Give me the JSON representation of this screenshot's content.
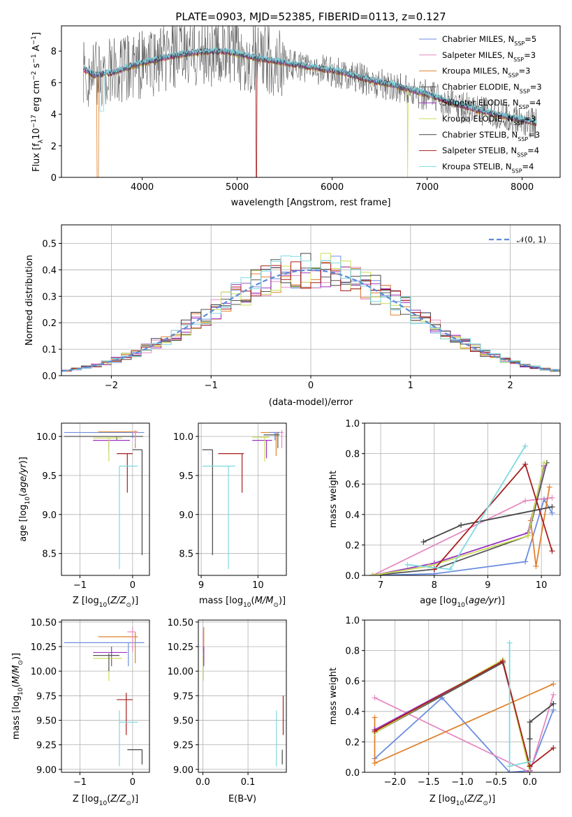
{
  "title": "PLATE=0903, MJD=52385, FIBERID=0113, z=0.127",
  "colors": {
    "chab_miles": "#6c8ee0",
    "salp_miles": "#e58ac0",
    "kroupa_miles": "#e0822d",
    "chab_elodie": "#555555",
    "salp_elodie": "#9b33c0",
    "kroupa_elodie": "#c9dd55",
    "chab_stelib": "#444444",
    "salp_stelib": "#a81d1d",
    "kroupa_stelib": "#7fd9df",
    "gauss": "#5b8bd6"
  },
  "chart_data": [
    {
      "id": "spectrum",
      "type": "line",
      "xlabel": "wavelength [Angstrom, rest frame]",
      "ylabel_main": "Flux [f",
      "ylabel_sub": "λ",
      "ylabel_rest": "10",
      "ylabel_exp": "−17",
      "ylabel_units": " erg cm",
      "ylabel_exp2": "−2",
      "ylabel_s": " s",
      "ylabel_exp3": "−1",
      "ylabel_A": " A",
      "ylabel_exp4": "−1",
      "ylabel_end": "]",
      "xlim": [
        3150,
        8400
      ],
      "ylim": [
        0,
        9.6
      ],
      "xticks": [
        "4000",
        "5000",
        "6000",
        "7000",
        "8000"
      ],
      "xtick_values": [
        4000,
        5000,
        6000,
        7000,
        8000
      ],
      "yticks": [
        "0",
        "2",
        "4",
        "6",
        "8"
      ],
      "ytick_values": [
        0,
        2,
        4,
        6,
        8
      ],
      "continuum": {
        "x": [
          3380,
          3500,
          3700,
          4000,
          4300,
          4600,
          4900,
          5200,
          5500,
          5800,
          6100,
          6400,
          6700,
          7000,
          7300,
          7600,
          7900,
          8150
        ],
        "y": [
          6.8,
          6.4,
          6.6,
          7.2,
          7.6,
          7.9,
          7.9,
          7.5,
          7.2,
          6.9,
          6.6,
          6.1,
          5.7,
          5.2,
          4.6,
          4.1,
          3.7,
          3.4
        ]
      },
      "legend": [
        {
          "label": "Chabrier MILES, N",
          "sub": "SSP",
          "val": "=5"
        },
        {
          "label": "Salpeter MILES, N",
          "sub": "SSP",
          "val": "=3"
        },
        {
          "label": "Kroupa MILES, N",
          "sub": "SSP",
          "val": "=3"
        },
        {
          "label": "Chabrier ELODIE, N",
          "sub": "SSP",
          "val": "=3"
        },
        {
          "label": "Salpeter ELODIE, N",
          "sub": "SSP",
          "val": "=4"
        },
        {
          "label": "Kroupa ELODIE, N",
          "sub": "SSP",
          "val": "=3"
        },
        {
          "label": "Chabrier STELIB, N",
          "sub": "SSP",
          "val": "=3"
        },
        {
          "label": "Salpeter STELIB, N",
          "sub": "SSP",
          "val": "=4"
        },
        {
          "label": "Kroupa STELIB, N",
          "sub": "SSP",
          "val": "=4"
        }
      ]
    },
    {
      "id": "residuals",
      "type": "histogram",
      "xlabel": "(data-model)/error",
      "ylabel": "Normed distribution",
      "xlim": [
        -2.5,
        2.5
      ],
      "ylim": [
        0,
        0.57
      ],
      "xticks": [
        "−2",
        "−1",
        "0",
        "1",
        "2"
      ],
      "xtick_values": [
        -2,
        -1,
        0,
        1,
        2
      ],
      "yticks": [
        "0.0",
        "0.1",
        "0.2",
        "0.3",
        "0.4",
        "0.5"
      ],
      "ytick_values": [
        0,
        0.1,
        0.2,
        0.3,
        0.4,
        0.5
      ],
      "gauss_label": "𝒩(0, 1)",
      "bin_width": 0.1,
      "bins_start": -2.5
    },
    {
      "id": "age_vs_Z",
      "type": "errorbar",
      "xlabel": "Z [log",
      "xlabel_sub": "10",
      "xlabel_rest": "(Z/Z",
      "xlabel_sun": "⊙",
      "xlabel_end": ")]",
      "ylabel": "age  [log",
      "ylabel_sub": "10",
      "ylabel_rest": "(age/yr)]",
      "xlim": [
        -1.35,
        0.32
      ],
      "ylim": [
        8.22,
        10.17
      ],
      "xticks": [
        "−1",
        "0"
      ],
      "xtick_values": [
        -1,
        0
      ],
      "yticks": [
        "8.5",
        "9.0",
        "9.5",
        "10.0"
      ],
      "ytick_values": [
        8.5,
        9.0,
        9.5,
        10.0
      ],
      "points": [
        {
          "c": "chab_miles",
          "x": -1.3,
          "y": 10.05,
          "x2": 0.22,
          "y2": 10.05,
          "vx": 0.0,
          "vy1": 10.05,
          "vy2": 9.98
        },
        {
          "c": "chab_elodie",
          "x": -1.3,
          "y": 10.0,
          "x2": 0.2,
          "y2": 10.0,
          "vx": -0.3,
          "vy1": 10.0,
          "vy2": 9.95
        },
        {
          "c": "kroupa_miles",
          "x": -0.65,
          "y": 10.06,
          "x2": 0.1,
          "y2": 10.06,
          "vx": 0.05,
          "vy1": 10.06,
          "vy2": 9.85
        },
        {
          "c": "salp_miles",
          "x": 0.0,
          "y": 10.05,
          "x2": 0.1,
          "y2": 10.05,
          "vx": 0.05,
          "vy1": 10.08,
          "vy2": 9.9
        },
        {
          "c": "salp_elodie",
          "x": -0.75,
          "y": 9.95,
          "x2": -0.05,
          "y2": 9.95,
          "vx": -0.45,
          "vy1": 9.95,
          "vy2": 9.8
        },
        {
          "c": "kroupa_elodie",
          "x": -0.75,
          "y": 9.98,
          "x2": -0.2,
          "y2": 9.98,
          "vx": -0.45,
          "vy1": 9.98,
          "vy2": 9.68
        },
        {
          "c": "salp_stelib",
          "x": -0.3,
          "y": 9.78,
          "x2": 0.0,
          "y2": 9.78,
          "vx": -0.1,
          "vy1": 9.78,
          "vy2": 9.28
        },
        {
          "c": "kroupa_stelib",
          "x": -0.25,
          "y": 9.62,
          "x2": 0.1,
          "y2": 9.62,
          "vx": -0.25,
          "vy1": 9.62,
          "vy2": 8.3
        },
        {
          "c": "chab_stelib",
          "x": 0.0,
          "y": 9.83,
          "x2": 0.18,
          "y2": 9.83,
          "vx": 0.18,
          "vy1": 9.83,
          "vy2": 8.48
        }
      ]
    },
    {
      "id": "age_vs_mass",
      "type": "errorbar",
      "xlabel": "mass [log",
      "xlabel_sub": "10",
      "xlabel_rest": "(M/M",
      "xlabel_sun": "⊙",
      "xlabel_end": ")]",
      "xlim": [
        8.95,
        10.5
      ],
      "ylim": [
        8.22,
        10.17
      ],
      "xticks": [
        "9",
        "10"
      ],
      "xtick_values": [
        9,
        10
      ],
      "yticks": [
        "8.5",
        "9.0",
        "9.5",
        "10.0"
      ],
      "ytick_values": [
        8.5,
        9.0,
        9.5,
        10.0
      ],
      "points": [
        {
          "c": "chab_stelib",
          "x": 9.02,
          "y": 9.83,
          "x2": 9.2,
          "y2": 9.83,
          "vx": 9.2,
          "vy1": 9.83,
          "vy2": 8.48
        },
        {
          "c": "kroupa_stelib",
          "x": 9.02,
          "y": 9.62,
          "x2": 9.6,
          "y2": 9.62,
          "vx": 9.48,
          "vy1": 9.62,
          "vy2": 8.3
        },
        {
          "c": "salp_stelib",
          "x": 9.3,
          "y": 9.78,
          "x2": 9.75,
          "y2": 9.78,
          "vx": 9.72,
          "vy1": 9.78,
          "vy2": 9.28
        },
        {
          "c": "salp_elodie",
          "x": 9.9,
          "y": 9.95,
          "x2": 10.25,
          "y2": 9.95,
          "vx": 10.15,
          "vy1": 9.95,
          "vy2": 9.72
        },
        {
          "c": "kroupa_elodie",
          "x": 9.9,
          "y": 9.99,
          "x2": 10.2,
          "y2": 9.99,
          "vx": 10.12,
          "vy1": 9.99,
          "vy2": 9.68
        },
        {
          "c": "kroupa_miles",
          "x": 10.05,
          "y": 10.05,
          "x2": 10.38,
          "y2": 10.05,
          "vx": 10.32,
          "vy1": 10.05,
          "vy2": 9.75
        },
        {
          "c": "salp_miles",
          "x": 10.25,
          "y": 10.05,
          "x2": 10.45,
          "y2": 10.05,
          "vx": 10.42,
          "vy1": 10.08,
          "vy2": 9.85
        },
        {
          "c": "chab_miles",
          "x": 10.2,
          "y": 10.05,
          "x2": 10.38,
          "y2": 10.05,
          "vx": 10.3,
          "vy1": 10.05,
          "vy2": 9.95
        },
        {
          "c": "chab_elodie",
          "x": 10.1,
          "y": 10.02,
          "x2": 10.38,
          "y2": 10.02,
          "vx": 10.35,
          "vy1": 10.05,
          "vy2": 9.85
        }
      ]
    },
    {
      "id": "weight_vs_age",
      "type": "line",
      "xlabel": "age  [log",
      "xlabel_sub": "10",
      "xlabel_rest": "(age/yr)]",
      "ylabel": "mass weight",
      "xlim": [
        6.7,
        10.35
      ],
      "ylim": [
        0,
        1.0
      ],
      "xticks": [
        "7",
        "8",
        "9",
        "10"
      ],
      "xtick_values": [
        7,
        8,
        9,
        10
      ],
      "yticks": [
        "0.0",
        "0.2",
        "0.4",
        "0.6",
        "0.8",
        "1.0"
      ],
      "ytick_values": [
        0,
        0.2,
        0.4,
        0.6,
        0.8,
        1.0
      ],
      "series": [
        {
          "c": "chab_miles",
          "x": [
            6.85,
            8.0,
            9.7,
            10.05,
            10.2
          ],
          "y": [
            0.0,
            0.01,
            0.09,
            0.5,
            0.41
          ]
        },
        {
          "c": "salp_miles",
          "x": [
            6.85,
            9.7,
            10.2
          ],
          "y": [
            0.0,
            0.49,
            0.51
          ]
        },
        {
          "c": "kroupa_miles",
          "x": [
            9.8,
            9.9,
            10.15
          ],
          "y": [
            0.36,
            0.06,
            0.58
          ]
        },
        {
          "c": "chab_elodie",
          "x": [
            6.85,
            8.0,
            9.75,
            10.1
          ],
          "y": [
            0.0,
            0.04,
            0.26,
            0.74
          ]
        },
        {
          "c": "salp_elodie",
          "x": [
            6.85,
            8.0,
            9.75,
            10.05
          ],
          "y": [
            0.0,
            0.08,
            0.28,
            0.72
          ]
        },
        {
          "c": "kroupa_elodie",
          "x": [
            6.85,
            7.9,
            9.75,
            10.05
          ],
          "y": [
            0.0,
            0.06,
            0.26,
            0.74
          ]
        },
        {
          "c": "chab_stelib",
          "x": [
            7.8,
            8.5,
            10.2
          ],
          "y": [
            0.22,
            0.33,
            0.45
          ]
        },
        {
          "c": "salp_stelib",
          "x": [
            8.0,
            9.7,
            10.2
          ],
          "y": [
            0.04,
            0.73,
            0.16
          ]
        },
        {
          "c": "kroupa_stelib",
          "x": [
            7.5,
            8.3,
            9.7
          ],
          "y": [
            0.07,
            0.04,
            0.85
          ]
        }
      ]
    },
    {
      "id": "mass_vs_Z",
      "type": "errorbar",
      "xlabel": "Z [log",
      "xlabel_sub": "10",
      "xlabel_rest": "(Z/Z",
      "xlabel_sun": "⊙",
      "xlabel_end": ")]",
      "ylabel": "mass [log",
      "ylabel_sub": "10",
      "ylabel_rest": "(M/M",
      "ylabel_sun": "⊙",
      "ylabel_end": ")]",
      "xlim": [
        -1.35,
        0.32
      ],
      "ylim": [
        8.97,
        10.52
      ],
      "xticks": [
        "−1",
        "0"
      ],
      "xtick_values": [
        -1,
        0
      ],
      "yticks": [
        "9.00",
        "9.25",
        "9.50",
        "9.75",
        "10.00",
        "10.25",
        "10.50"
      ],
      "ytick_values": [
        9.0,
        9.25,
        9.5,
        9.75,
        10.0,
        10.25,
        10.5
      ],
      "points": [
        {
          "c": "chab_miles",
          "x": -1.3,
          "y": 10.29,
          "x2": 0.22,
          "y2": 10.29,
          "vx": -0.08,
          "vy1": 10.29,
          "vy2": 10.05
        },
        {
          "c": "kroupa_miles",
          "x": -0.65,
          "y": 10.35,
          "x2": 0.1,
          "y2": 10.35,
          "vx": 0.05,
          "vy1": 10.4,
          "vy2": 10.08
        },
        {
          "c": "salp_miles",
          "x": -0.1,
          "y": 10.4,
          "x2": 0.05,
          "y2": 10.4,
          "vx": 0.0,
          "vy1": 10.45,
          "vy2": 10.2
        },
        {
          "c": "salp_elodie",
          "x": -0.75,
          "y": 10.19,
          "x2": -0.1,
          "y2": 10.19,
          "vx": -0.4,
          "vy1": 10.25,
          "vy2": 10.05
        },
        {
          "c": "kroupa_elodie",
          "x": -0.75,
          "y": 10.13,
          "x2": -0.2,
          "y2": 10.13,
          "vx": -0.45,
          "vy1": 10.15,
          "vy2": 9.9
        },
        {
          "c": "chab_elodie",
          "x": -0.75,
          "y": 10.16,
          "x2": -0.25,
          "y2": 10.16,
          "vx": -0.45,
          "vy1": 10.18,
          "vy2": 10.0
        },
        {
          "c": "salp_stelib",
          "x": -0.3,
          "y": 9.71,
          "x2": 0.0,
          "y2": 9.71,
          "vx": -0.12,
          "vy1": 9.78,
          "vy2": 9.35
        },
        {
          "c": "kroupa_stelib",
          "x": -0.25,
          "y": 9.48,
          "x2": 0.1,
          "y2": 9.48,
          "vx": -0.25,
          "vy1": 9.6,
          "vy2": 9.03
        },
        {
          "c": "chab_stelib",
          "x": -0.1,
          "y": 9.2,
          "x2": 0.18,
          "y2": 9.2,
          "vx": 0.18,
          "vy1": 9.2,
          "vy2": 9.05
        }
      ]
    },
    {
      "id": "mass_vs_ebv",
      "type": "errorbar",
      "xlabel": "E(B-V)",
      "xlim": [
        -0.01,
        0.185
      ],
      "ylim": [
        8.97,
        10.52
      ],
      "xticks": [
        "0.0",
        "0.1"
      ],
      "xtick_values": [
        0,
        0.1
      ],
      "yticks": [
        "9.00",
        "9.25",
        "9.50",
        "9.75",
        "10.00",
        "10.25",
        "10.50"
      ],
      "ytick_values": [
        9.0,
        9.25,
        9.5,
        9.75,
        10.0,
        10.25,
        10.5
      ],
      "points": [
        {
          "c": "kroupa_miles",
          "vx": 0.002,
          "vy1": 10.45,
          "vy2": 10.1
        },
        {
          "c": "salp_miles",
          "vx": 0.001,
          "vy1": 10.42,
          "vy2": 10.2
        },
        {
          "c": "kroupa_elodie",
          "vx": 0.001,
          "vy1": 10.15,
          "vy2": 9.9
        },
        {
          "c": "salp_elodie",
          "vx": 0.002,
          "vy1": 10.25,
          "vy2": 10.05
        },
        {
          "c": "kroupa_stelib",
          "vx": 0.163,
          "vy1": 9.6,
          "vy2": 9.03
        },
        {
          "c": "salp_stelib",
          "vx": 0.178,
          "vy1": 9.75,
          "vy2": 9.35
        },
        {
          "c": "chab_stelib",
          "vx": 0.176,
          "vy1": 9.2,
          "vy2": 9.05
        }
      ]
    },
    {
      "id": "weight_vs_Z",
      "type": "line",
      "xlabel": "Z [log",
      "xlabel_sub": "10",
      "xlabel_rest": "(Z/Z",
      "xlabel_sun": "⊙",
      "xlabel_end": ")]",
      "ylabel": "mass weight",
      "xlim": [
        -2.45,
        0.45
      ],
      "ylim": [
        0,
        1.0
      ],
      "xticks": [
        "−2.0",
        "−1.5",
        "−1.0",
        "−0.5",
        "0.0"
      ],
      "xtick_values": [
        -2.0,
        -1.5,
        -1.0,
        -0.5,
        0.0
      ],
      "yticks": [
        "0.0",
        "0.2",
        "0.4",
        "0.6",
        "0.8",
        "1.0"
      ],
      "ytick_values": [
        0,
        0.2,
        0.4,
        0.6,
        0.8,
        1.0
      ],
      "series": [
        {
          "c": "chab_miles",
          "x": [
            -2.3,
            -1.3,
            -0.3,
            0.0,
            0.35
          ],
          "y": [
            0.09,
            0.49,
            0.0,
            0.01,
            0.41
          ]
        },
        {
          "c": "salp_miles",
          "x": [
            -2.3,
            0.0,
            0.35
          ],
          "y": [
            0.49,
            0.0,
            0.51
          ]
        },
        {
          "c": "kroupa_miles",
          "x": [
            -2.3,
            -2.3,
            0.35
          ],
          "y": [
            0.36,
            0.06,
            0.58
          ]
        },
        {
          "c": "chab_elodie",
          "x": [
            -2.3,
            -0.4,
            0.0,
            0.0
          ],
          "y": [
            0.26,
            0.72,
            0.04,
            0.22
          ]
        },
        {
          "c": "salp_elodie",
          "x": [
            -2.3,
            -0.4,
            0.0
          ],
          "y": [
            0.28,
            0.73,
            0.01
          ]
        },
        {
          "c": "kroupa_elodie",
          "x": [
            -2.3,
            -0.4,
            0.0
          ],
          "y": [
            0.26,
            0.74,
            0.0
          ]
        },
        {
          "c": "chab_stelib",
          "x": [
            0.0,
            0.0,
            0.35,
            0.35
          ],
          "y": [
            0.22,
            0.33,
            0.45,
            0.45
          ]
        },
        {
          "c": "salp_stelib",
          "x": [
            -2.3,
            -0.4,
            0.0,
            0.35
          ],
          "y": [
            0.27,
            0.73,
            0.04,
            0.16
          ]
        },
        {
          "c": "kroupa_stelib",
          "x": [
            -0.3,
            -0.3,
            0.0
          ],
          "y": [
            0.85,
            0.04,
            0.07
          ]
        }
      ]
    }
  ]
}
